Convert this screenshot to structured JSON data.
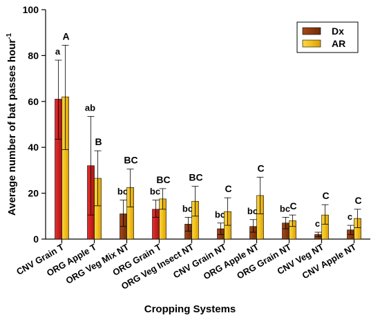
{
  "chart_data": {
    "type": "bar",
    "xlabel": "Cropping Systems",
    "ylabel": "Average number of bat passes hour",
    "ylabel_superscript": "-1",
    "ylim": [
      0,
      100
    ],
    "yticks": [
      0,
      20,
      40,
      60,
      80,
      100
    ],
    "legend_position": "top-right",
    "categories": [
      "CNV Grain T",
      "ORG Apple T",
      "ORG Veg Mix NT",
      "ORG Grain T",
      "ORG Veg Insect NT",
      "CNV Grain NT",
      "ORG Apple NT",
      "ORG Grain NT",
      "CNV Veg NT",
      "CNV Apple NT"
    ],
    "series": [
      {
        "name": "Dx",
        "color": "#8b3a0f",
        "highlight_color": "#cc2020",
        "highlight_indices": [
          0,
          1,
          3
        ],
        "values": [
          61,
          32,
          11,
          13,
          6.5,
          4.5,
          5.5,
          7,
          2,
          4
        ],
        "err_low": [
          43.5,
          10.5,
          5.5,
          9.5,
          3.5,
          2,
          3,
          4.5,
          1,
          2
        ],
        "err_high": [
          78,
          53.5,
          17,
          17,
          9.5,
          7,
          8.5,
          9.5,
          3,
          6
        ],
        "letters": [
          "a",
          "ab",
          "bc",
          "bc",
          "bc",
          "bc",
          "bc",
          "bc",
          "c",
          "c"
        ]
      },
      {
        "name": "AR",
        "color": "#f2c01c",
        "values": [
          62,
          26.5,
          22.5,
          17.5,
          16.5,
          12,
          19,
          8,
          10.5,
          9
        ],
        "err_low": [
          39,
          14.5,
          14,
          13,
          10,
          6,
          11,
          5.5,
          6.5,
          5
        ],
        "err_high": [
          84.5,
          38.5,
          30.5,
          22,
          23,
          18,
          27,
          10.5,
          15,
          13
        ],
        "letters": [
          "A",
          "B",
          "BC",
          "BC",
          "BC",
          "C",
          "C",
          "C",
          "C",
          "C"
        ]
      }
    ]
  }
}
